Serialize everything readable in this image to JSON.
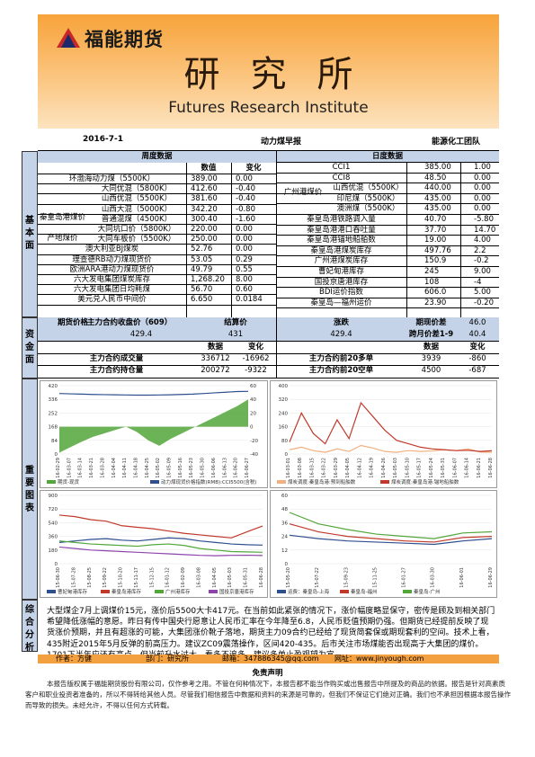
{
  "header": {
    "logo_text": "福能期货",
    "title_cn": "研究所",
    "title_en": "Futures Research Institute"
  },
  "info": {
    "date": "2016-7-1",
    "report": "动力煤早报",
    "team": "能源化工团队"
  },
  "sections": {
    "basic": "基本面",
    "funds": "资金面",
    "charts": "重要图表",
    "summary": "综合分析"
  },
  "weekly": {
    "title": "周度数据",
    "col_value": "数值",
    "col_change": "变化",
    "rows": [
      {
        "name": "环渤海动力煤（5500K）",
        "value": "389.00",
        "change": "0.00"
      },
      {
        "name": "大同优混（5800K）",
        "value": "412.60",
        "change": "-0.40"
      },
      {
        "name": "山西优混（5500K）",
        "value": "381.60",
        "change": "-0.40"
      },
      {
        "name": "山西大混（5000K）",
        "value": "342.20",
        "change": "-0.80"
      },
      {
        "name": "普通混煤（4500K）",
        "value": "300.40",
        "change": "-1.60"
      },
      {
        "name": "大同坑口价（5800K）",
        "value": "220.00",
        "change": "0.00"
      },
      {
        "name": "大同车板价（5500K）",
        "value": "250.00",
        "change": "0.00"
      },
      {
        "name": "澳大利亚BJ煤炭",
        "value": "52.76",
        "change": "0.00"
      },
      {
        "name": "理查德RB动力煤现货价",
        "value": "53.05",
        "change": "0.29"
      },
      {
        "name": "欧洲ARA港动力煤现货价",
        "value": "49.79",
        "change": "0.55"
      },
      {
        "name": "六大发电集团煤炭库存",
        "value": "1,268.20",
        "change": "8.00"
      },
      {
        "name": "六大发电集团日均耗煤",
        "value": "56.70",
        "change": "0.60"
      },
      {
        "name": "美元兑人民币中间价",
        "value": "6.650",
        "change": "0.0184"
      }
    ],
    "group_qhd": "秦皇岛港煤价",
    "group_origin": "产地煤价"
  },
  "daily": {
    "title": "日度数据",
    "rows": [
      {
        "name": "CCI1",
        "value": "385.00",
        "change": "1.00"
      },
      {
        "name": "CCI8",
        "value": "48.50",
        "change": "0.00"
      },
      {
        "name": "山西优混（5500K）",
        "value": "440.00",
        "change": "0.00"
      },
      {
        "name": "印尼煤（5500K）",
        "value": "435.00",
        "change": "0.00"
      },
      {
        "name": "澳洲煤（5500K）",
        "value": "435.00",
        "change": "0.00"
      },
      {
        "name": "秦皇岛港铁路调入量",
        "value": "40.70",
        "change": "-5.80"
      },
      {
        "name": "秦皇岛港港口吞吐量",
        "value": "37.70",
        "change": "14.70"
      },
      {
        "name": "秦皇岛港锚地船舶数",
        "value": "19.00",
        "change": "4.00"
      },
      {
        "name": "秦皇岛港煤炭库存",
        "value": "497.76",
        "change": "2.2"
      },
      {
        "name": "广州港煤炭库存",
        "value": "150.9",
        "change": "-0.2"
      },
      {
        "name": "曹妃甸港库存",
        "value": "245",
        "change": "9.00"
      },
      {
        "name": "国投京唐港库存",
        "value": "108",
        "change": "-4"
      },
      {
        "name": "BDI运价指数",
        "value": "606.0",
        "change": "5.00"
      },
      {
        "name": "秦皇岛—福州运价",
        "value": "23.90",
        "change": "-0.20"
      }
    ],
    "group_gz": "广州港煤价"
  },
  "funds": {
    "futures_price": "期货价格",
    "main_close_label": "主力合约收盘价（609）",
    "main_close": "429.4",
    "settle_label": "结算价",
    "settle": "431",
    "change_label": "涨跌",
    "change": "429.4",
    "basis_label": "期现价差",
    "basis": "46.0",
    "spread_label": "跨月价差1-9",
    "spread": "40.4",
    "col_value": "数据",
    "col_change": "变化",
    "volume_label": "主力合约成交量",
    "volume": "336712",
    "volume_chg": "-16962",
    "oi_label": "主力合约持仓量",
    "oi": "200272",
    "oi_chg": "-9322",
    "top20_long_label": "主力合约前20多单",
    "top20_long": "3939",
    "top20_long_chg": "-860",
    "top20_short_label": "主力合约前20空单",
    "top20_short": "4500",
    "top20_short_chg": "-687"
  },
  "chart_data": [
    {
      "type": "line",
      "x": [
        "16-02-29",
        "16-03-07",
        "16-03-14",
        "16-03-21",
        "16-03-28",
        "16-04-04",
        "16-04-11",
        "16-04-18",
        "16-04-25",
        "16-05-02",
        "16-05-09",
        "16-05-16",
        "16-05-23",
        "16-05-30",
        "16-06-06",
        "16-06-13",
        "16-06-20",
        "16-06-27"
      ],
      "series": [
        {
          "name": "期货-现货",
          "values": [
            -38,
            -30,
            -22,
            -15,
            -10,
            -5,
            0,
            -8,
            -20,
            -28,
            -18,
            -10,
            -2,
            6,
            14,
            22,
            30,
            40
          ]
        },
        {
          "name": "动力煤现货价格指数(RMB):CCI5500(含税)",
          "values": [
            372,
            370,
            368,
            366,
            365,
            364,
            363,
            362,
            362,
            363,
            364,
            366,
            368,
            372,
            376,
            380,
            384,
            385
          ]
        }
      ],
      "ylim_left": [
        0,
        420
      ],
      "ylim_right": [
        -40,
        60
      ]
    },
    {
      "type": "line",
      "x": [
        "16-03-01",
        "16-03-08",
        "16-03-15",
        "16-03-22",
        "16-03-29",
        "16-04-05",
        "16-04-12",
        "16-04-19",
        "16-04-26",
        "16-05-03",
        "16-05-10",
        "16-05-17",
        "16-05-24",
        "16-05-31",
        "16-06-07",
        "16-06-14",
        "16-06-21",
        "16-06-28"
      ],
      "series": [
        {
          "name": "煤炭调度:秦皇岛港:预到船舶数",
          "values": [
            25,
            40,
            20,
            10,
            30,
            15,
            50,
            35,
            15,
            10,
            20,
            15,
            18,
            25,
            20,
            30,
            12,
            10
          ]
        },
        {
          "name": "煤炭调度:秦皇岛港:锚地船舶数",
          "values": [
            70,
            240,
            120,
            60,
            200,
            90,
            300,
            220,
            140,
            80,
            60,
            40,
            30,
            25,
            20,
            22,
            15,
            19
          ]
        }
      ],
      "ylim": [
        0,
        400
      ]
    },
    {
      "type": "line",
      "x": [
        "15-06-30",
        "15-07-28",
        "15-08-25",
        "15-09-22",
        "15-10-20",
        "15-11-17",
        "15-12-15",
        "16-01-12",
        "16-02-09",
        "16-03-08",
        "16-04-05",
        "16-05-03",
        "16-05-31",
        "16-06-28"
      ],
      "series": [
        {
          "name": "曹妃甸港库存",
          "values": [
            280,
            300,
            320,
            330,
            310,
            300,
            320,
            340,
            330,
            300,
            280,
            260,
            250,
            245
          ]
        },
        {
          "name": "秦皇岛港库存",
          "values": [
            640,
            620,
            580,
            560,
            500,
            480,
            460,
            430,
            400,
            380,
            360,
            340,
            420,
            497
          ]
        },
        {
          "name": "广州港库存",
          "values": [
            300,
            280,
            260,
            250,
            240,
            230,
            250,
            260,
            240,
            200,
            180,
            160,
            155,
            150
          ]
        },
        {
          "name": "国投京唐港库存",
          "values": [
            220,
            200,
            180,
            170,
            160,
            150,
            140,
            130,
            120,
            110,
            105,
            110,
            112,
            108
          ]
        }
      ],
      "ylim": [
        0,
        900
      ]
    },
    {
      "type": "line",
      "x": [
        "15-05-20",
        "15-07-22",
        "15-09-23",
        "15-11-25",
        "16-01-27",
        "16-03-30",
        "16-06-01",
        "16-06-29"
      ],
      "series": [
        {
          "name": "运费：秦皇岛-上海",
          "values": [
            25,
            22,
            20,
            19,
            18,
            17,
            20,
            22
          ]
        },
        {
          "name": "秦皇岛-福州",
          "values": [
            35,
            28,
            24,
            22,
            20,
            19,
            23,
            24
          ]
        },
        {
          "name": "秦皇岛-广州",
          "values": [
            45,
            35,
            30,
            26,
            24,
            22,
            27,
            28
          ]
        }
      ],
      "ylim": [
        0,
        60
      ]
    }
  ],
  "summary_text": "大型煤企7月上调煤价15元，涨价后5500大卡417元。在当前如此紧张的情况下，涨价幅度略显保守，密传是顾及到相关部门希望降低涨幅的意愿。昨日有传中国央行愿意让人民币汇率在今年降至6.8，人民币贬值预期仍强。但期货已经提前反映了现货涨价预期，并且有超涨的可能，大集团涨价靴子落地，期货主力09合约已经给了现货简套保或期现套利的空间。技术上看，435附近2015年5月反弹的前高压力。建议ZC09震荡操作，区间420-435。后市关注市场煤能否出现高于大集团的煤价。1701下半年应还有高点，但当前升水过大，看多不追多，建议多单止盈观望为宜。",
  "footer": {
    "author": "作者：方健",
    "dept": "部门：研究所",
    "email": "邮箱：347886345@qq.com",
    "site": "网址：www.jinyough.com"
  },
  "disclaimer_title": "免责声明",
  "disclaimer": "本报告版权属于福能期货股份有限公司，仅作参考之用。不管在何种情况下，本报告都不能当作购买或出售报告中所提及的商品的依据。报告是针对高素质客户和职业投资者准备的，所以不得转给其他人员。尽管我们相信报告中数据和资料的来源是可靠的，但我们不保证它们绝对正确。我们也不承担因根据本报告操作而导致的损失。未经允许，不得以任何方式转载。",
  "colors": {
    "header_orange": "#f7a33a",
    "label_blue": "#c5d3e8",
    "series_green": "#52a63a",
    "series_blue": "#2f4f8f",
    "series_red": "#c0392b",
    "series_orange": "#f08a3a"
  }
}
